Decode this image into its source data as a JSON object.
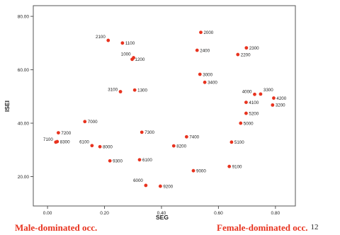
{
  "chart_data": {
    "type": "scatter",
    "xlabel": "SEG",
    "ylabel": "ISEI",
    "xlim": [
      -0.05,
      0.87
    ],
    "ylim": [
      9,
      84
    ],
    "xticks": [
      "0.00",
      "0.20",
      "0.40",
      "0.60",
      "0.80"
    ],
    "xtick_values": [
      0.0,
      0.2,
      0.4,
      0.6,
      0.8
    ],
    "yticks": [
      "20.00",
      "40.00",
      "60.00",
      "80.00"
    ],
    "ytick_values": [
      20,
      40,
      60,
      80
    ],
    "grid": false,
    "point_color": "#e8331f",
    "points": [
      {
        "x": 0.263,
        "y": 70.0,
        "label": "1100"
      },
      {
        "x": 0.213,
        "y": 71.0,
        "label": "2100"
      },
      {
        "x": 0.302,
        "y": 64.5,
        "label": "1000"
      },
      {
        "x": 0.297,
        "y": 63.9,
        "label": "1200"
      },
      {
        "x": 0.538,
        "y": 74.0,
        "label": "2000"
      },
      {
        "x": 0.525,
        "y": 67.3,
        "label": "2400"
      },
      {
        "x": 0.698,
        "y": 68.2,
        "label": "2300"
      },
      {
        "x": 0.668,
        "y": 65.7,
        "label": "2200"
      },
      {
        "x": 0.535,
        "y": 58.3,
        "label": "3000"
      },
      {
        "x": 0.552,
        "y": 55.3,
        "label": "3400"
      },
      {
        "x": 0.256,
        "y": 51.8,
        "label": "3100"
      },
      {
        "x": 0.306,
        "y": 52.4,
        "label": "1300"
      },
      {
        "x": 0.727,
        "y": 50.8,
        "label": "4000"
      },
      {
        "x": 0.748,
        "y": 50.9,
        "label": "3300"
      },
      {
        "x": 0.794,
        "y": 49.4,
        "label": "4200"
      },
      {
        "x": 0.79,
        "y": 46.8,
        "label": "3200"
      },
      {
        "x": 0.697,
        "y": 47.8,
        "label": "4100"
      },
      {
        "x": 0.697,
        "y": 43.7,
        "label": "5200"
      },
      {
        "x": 0.678,
        "y": 40.0,
        "label": "5000"
      },
      {
        "x": 0.131,
        "y": 40.6,
        "label": "7000"
      },
      {
        "x": 0.038,
        "y": 36.4,
        "label": "7200"
      },
      {
        "x": 0.029,
        "y": 32.9,
        "label": "7100"
      },
      {
        "x": 0.034,
        "y": 33.1,
        "label": "8300"
      },
      {
        "x": 0.156,
        "y": 31.6,
        "label": "6100"
      },
      {
        "x": 0.184,
        "y": 31.2,
        "label": "8000"
      },
      {
        "x": 0.331,
        "y": 36.6,
        "label": "7300"
      },
      {
        "x": 0.488,
        "y": 34.9,
        "label": "7400"
      },
      {
        "x": 0.443,
        "y": 31.5,
        "label": "8200"
      },
      {
        "x": 0.646,
        "y": 32.9,
        "label": "5100"
      },
      {
        "x": 0.219,
        "y": 25.9,
        "label": "9300"
      },
      {
        "x": 0.323,
        "y": 26.3,
        "label": "6100"
      },
      {
        "x": 0.512,
        "y": 22.2,
        "label": "9000"
      },
      {
        "x": 0.638,
        "y": 23.8,
        "label": "9100"
      },
      {
        "x": 0.345,
        "y": 16.7,
        "label": "6000"
      },
      {
        "x": 0.396,
        "y": 16.4,
        "label": "9200"
      }
    ]
  },
  "footer": {
    "left": "Male-dominated occ.",
    "right": "Female-dominated occ.",
    "page_number": "12"
  }
}
